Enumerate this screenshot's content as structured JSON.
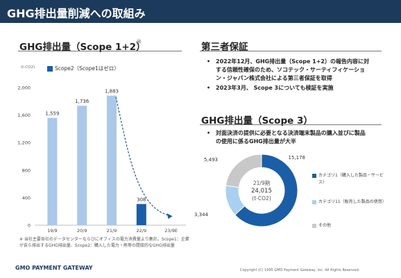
{
  "header": {
    "title": "GHG排出量削減への取組み"
  },
  "left": {
    "title": "GHG排出量（Scope 1+2）",
    "asterisk": "※",
    "footnote": "※ 当社主要各社のデータセンターならびにオフィスの電力消費量より集計。Scope1：企業が自ら排出するGHG排出量、Scope2：購入した電力・熱等の間接的なGHG排出量"
  },
  "right": {
    "title1": "第三者保証",
    "bullets1": [
      "2022年12月、GHG排出量（Scope 1+2）の報告内容に対する信頼性確保のため、ソコテック・サーティフィケーション・ジャパン株式会社による第三者保証を取得",
      "2023年3月、 Scope 3についても検証を実施"
    ],
    "title2": "GHG排出量（Scope 3）",
    "bullets2": [
      "対面決済の提供に必要となる決済端末製品の購入並びに製品の使用に係るGHG排出量が大半"
    ]
  },
  "chart_data": [
    {
      "type": "bar",
      "unit_label": "(t-CO2)",
      "categories": [
        "19/9",
        "20/9",
        "21/9",
        "22/9",
        "23/9E"
      ],
      "series": [
        {
          "name": "Scope2（Scope1はゼロ）",
          "values": [
            1559,
            1736,
            1883,
            308,
            null
          ]
        }
      ],
      "value_labels": [
        "1,559",
        "1,736",
        "1,883",
        "308",
        ""
      ],
      "yticks": [
        "0",
        "400",
        "800",
        "1,200",
        "1,600",
        "2,000"
      ],
      "ylim": [
        0,
        2000
      ],
      "bar_colors": [
        "#a9c8ea",
        "#a9c8ea",
        "#a9c8ea",
        "#1a5ea8"
      ],
      "trend_arrow": "dashed downward arrow from 21/9 toward 23/9E"
    },
    {
      "type": "pie",
      "donut": true,
      "center_text": [
        "21/9期",
        "24,015",
        "(t-CO2)"
      ],
      "slices": [
        {
          "label": "カテゴリ1（購入した製品・サービス）",
          "value": 15178,
          "value_label": "15,178",
          "color": "#1a5ea8"
        },
        {
          "label": "カテゴリ11（販売した製品の使用）",
          "value": 3344,
          "value_label": "3,344",
          "color": "#a9d0f0"
        },
        {
          "label": "その他",
          "value": 5493,
          "value_label": "5,493",
          "color": "#c8c8c8"
        }
      ]
    }
  ],
  "footer": {
    "logo": "GMO PAYMENT GATEWAY",
    "copyright": "Copyright (C) 1995 GMO Payment Gateway, Inc. All Rights Reserved."
  }
}
